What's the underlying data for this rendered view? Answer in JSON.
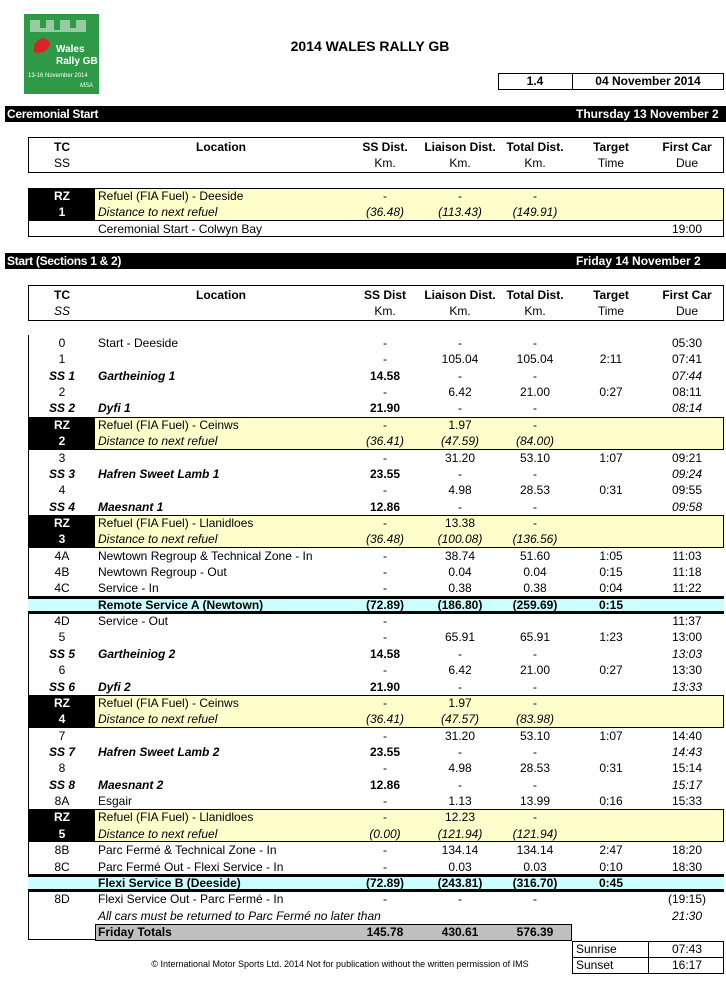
{
  "header": {
    "logo": {
      "line1": "Wales",
      "line2": "Rally GB",
      "dates": "13-16 November 2014",
      "org": "MSA"
    },
    "title": "2014 WALES RALLY GB",
    "version": "1.4",
    "date": "04 November 2014"
  },
  "sections": [
    {
      "name": "Ceremonial Start",
      "date": "Thursday 13 November 2",
      "columns": [
        [
          "TC",
          "SS"
        ],
        [
          "Location"
        ],
        [
          "SS Dist.",
          "Km."
        ],
        [
          "Liaison Dist.",
          "Km."
        ],
        [
          "Total Dist.",
          "Km."
        ],
        [
          "Target",
          "Time"
        ],
        [
          "First Car",
          "Due"
        ]
      ],
      "rows": [
        {
          "kind": "rz-top",
          "cells": [
            "RZ",
            "Refuel (FIA Fuel) - Deeside",
            "-",
            "-",
            "-",
            null,
            null
          ]
        },
        {
          "kind": "rz-bottom",
          "cells": [
            "1",
            "Distance to next refuel",
            "(36.48)",
            "(113.43)",
            "(149.91)",
            null,
            null
          ]
        },
        {
          "kind": "tc",
          "cells": [
            null,
            "Ceremonial Start - Colwyn Bay",
            null,
            null,
            null,
            null,
            "19:00"
          ]
        }
      ]
    },
    {
      "name": "Start (Sections 1 & 2)",
      "date": "Friday 14 November 2",
      "columns": [
        [
          "TC",
          "SS"
        ],
        [
          "Location"
        ],
        [
          "SS Dist",
          "Km."
        ],
        [
          "Liaison Dist.",
          "Km."
        ],
        [
          "Total Dist.",
          "Km."
        ],
        [
          "Target",
          "Time"
        ],
        [
          "First Car",
          "Due"
        ]
      ],
      "rows": [
        {
          "kind": "tc",
          "cells": [
            "0",
            "Start - Deeside",
            "-",
            "-",
            "-",
            null,
            "05:30"
          ]
        },
        {
          "kind": "tc",
          "cells": [
            "1",
            null,
            "-",
            "105.04",
            "105.04",
            "2:11",
            "07:41"
          ]
        },
        {
          "kind": "ss",
          "cells": [
            "SS 1",
            "Gartheiniog 1",
            "14.58",
            "-",
            "-",
            null,
            "07:44"
          ]
        },
        {
          "kind": "tc",
          "cells": [
            "2",
            null,
            "-",
            "6.42",
            "21.00",
            "0:27",
            "08:11"
          ]
        },
        {
          "kind": "ss",
          "cells": [
            "SS 2",
            "Dyfi 1",
            "21.90",
            "-",
            "-",
            null,
            "08:14"
          ]
        },
        {
          "kind": "rz-top",
          "cells": [
            "RZ",
            "Refuel  (FIA Fuel) - Ceinws",
            "-",
            "1.97",
            "-",
            null,
            null
          ]
        },
        {
          "kind": "rz-bottom",
          "cells": [
            "2",
            "Distance to next refuel",
            "(36.41)",
            "(47.59)",
            "(84.00)",
            null,
            null
          ]
        },
        {
          "kind": "tc",
          "cells": [
            "3",
            null,
            "-",
            "31.20",
            "53.10",
            "1:07",
            "09:21"
          ]
        },
        {
          "kind": "ss",
          "cells": [
            "SS 3",
            "Hafren Sweet Lamb 1",
            "23.55",
            "-",
            "-",
            null,
            "09:24"
          ]
        },
        {
          "kind": "tc",
          "cells": [
            "4",
            null,
            "-",
            "4.98",
            "28.53",
            "0:31",
            "09:55"
          ]
        },
        {
          "kind": "ss",
          "cells": [
            "SS 4",
            "Maesnant 1",
            "12.86",
            "-",
            "-",
            null,
            "09:58"
          ]
        },
        {
          "kind": "rz-top",
          "cells": [
            "RZ",
            "Refuel  (FIA Fuel) - Llanidloes",
            "-",
            "13.38",
            "-",
            null,
            null
          ]
        },
        {
          "kind": "rz-bottom",
          "cells": [
            "3",
            "Distance to next refuel",
            "(36.48)",
            "(100.08)",
            "(136.56)",
            null,
            null
          ]
        },
        {
          "kind": "tc",
          "cells": [
            "4A",
            "Newtown Regroup  & Technical Zone - In",
            "-",
            "38.74",
            "51.60",
            "1:05",
            "11:03"
          ]
        },
        {
          "kind": "tc",
          "cells": [
            "4B",
            "Newtown Regroup - Out",
            "-",
            "0.04",
            "0.04",
            "0:15",
            "11:18"
          ]
        },
        {
          "kind": "tc",
          "cells": [
            "4C",
            "Service - In",
            "-",
            "0.38",
            "0.38",
            "0:04",
            "11:22"
          ]
        },
        {
          "kind": "service",
          "cells": [
            null,
            "Remote Service A (Newtown)",
            "(72.89)",
            "(186.80)",
            "(259.69)",
            "0:15",
            null
          ]
        },
        {
          "kind": "tc",
          "cells": [
            "4D",
            "Service - Out",
            "-",
            null,
            null,
            null,
            "11:37"
          ]
        },
        {
          "kind": "tc",
          "cells": [
            "5",
            null,
            "-",
            "65.91",
            "65.91",
            "1:23",
            "13:00"
          ]
        },
        {
          "kind": "ss",
          "cells": [
            "SS 5",
            "Gartheiniog 2",
            "14.58",
            "-",
            "-",
            null,
            "13:03"
          ]
        },
        {
          "kind": "tc",
          "cells": [
            "6",
            null,
            "-",
            "6.42",
            "21.00",
            "0:27",
            "13:30"
          ]
        },
        {
          "kind": "ss",
          "cells": [
            "SS 6",
            "Dyfi 2",
            "21.90",
            "-",
            "-",
            null,
            "13:33"
          ]
        },
        {
          "kind": "rz-top",
          "cells": [
            "RZ",
            "Refuel (FIA Fuel) - Ceinws",
            "-",
            "1.97",
            "-",
            null,
            null
          ]
        },
        {
          "kind": "rz-bottom",
          "cells": [
            "4",
            "Distance to next refuel",
            "(36.41)",
            "(47.57)",
            "(83.98)",
            null,
            null
          ]
        },
        {
          "kind": "tc",
          "cells": [
            "7",
            null,
            "-",
            "31.20",
            "53.10",
            "1:07",
            "14:40"
          ]
        },
        {
          "kind": "ss",
          "cells": [
            "SS 7",
            "Hafren Sweet Lamb 2",
            "23.55",
            "-",
            "-",
            null,
            "14:43"
          ]
        },
        {
          "kind": "tc",
          "cells": [
            "8",
            null,
            "-",
            "4.98",
            "28.53",
            "0:31",
            "15:14"
          ]
        },
        {
          "kind": "ss",
          "cells": [
            "SS 8",
            "Maesnant 2",
            "12.86",
            "-",
            "-",
            null,
            "15:17"
          ]
        },
        {
          "kind": "tc",
          "cells": [
            "8A",
            "Esgair",
            "-",
            "1.13",
            "13.99",
            "0:16",
            "15:33"
          ]
        },
        {
          "kind": "rz-top",
          "cells": [
            "RZ",
            "Refuel (FIA Fuel) - Llanidloes",
            "-",
            "12.23",
            "-",
            null,
            null
          ]
        },
        {
          "kind": "rz-bottom",
          "cells": [
            "5",
            "Distance to next refuel",
            "(0.00)",
            "(121.94)",
            "(121.94)",
            null,
            null
          ]
        },
        {
          "kind": "tc",
          "cells": [
            "8B",
            "Parc Fermé & Technical Zone - In",
            "-",
            "134.14",
            "134.14",
            "2:47",
            "18:20"
          ]
        },
        {
          "kind": "tc",
          "cells": [
            "8C",
            "Parc Fermé Out - Flexi Service - In",
            "-",
            "0.03",
            "0.03",
            "0:10",
            "18:30"
          ]
        },
        {
          "kind": "service",
          "cells": [
            null,
            "Flexi Service B (Deeside)",
            "(72.89)",
            "(243.81)",
            "(316.70)",
            "0:45",
            null
          ]
        },
        {
          "kind": "tc",
          "cells": [
            "8D",
            "Flexi Service Out - Parc Fermé - In",
            "-",
            "-",
            "-",
            null,
            "(19:15)"
          ]
        },
        {
          "kind": "note",
          "cells": [
            null,
            "All cars must be returned to Parc Fermé no later than",
            null,
            null,
            null,
            null,
            "21:30"
          ]
        },
        {
          "kind": "total",
          "cells": [
            null,
            "Friday Totals",
            "145.78",
            "430.61",
            "576.39",
            null,
            null
          ]
        }
      ]
    }
  ],
  "sun": [
    [
      "Sunrise",
      "07:43"
    ],
    [
      "Sunset",
      "16:17"
    ]
  ],
  "footer": "© International Motor Sports Ltd. 2014  Not for publication without the written permission of IMS"
}
